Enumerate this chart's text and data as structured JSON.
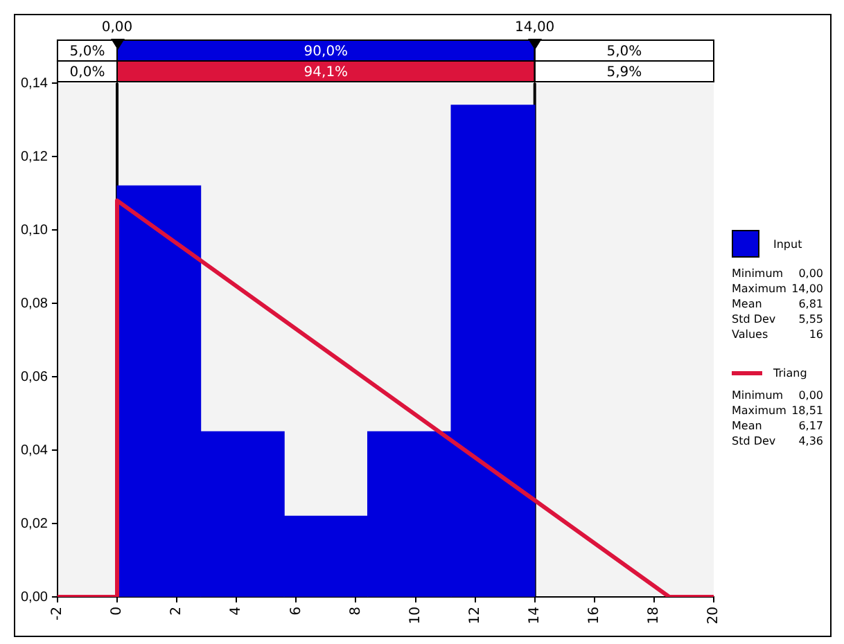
{
  "chart_data": {
    "type": "histogram",
    "bins": [
      0,
      2.8,
      5.6,
      8.4,
      11.2,
      14
    ],
    "series": [
      {
        "name": "Input",
        "type": "histogram",
        "color": "#0000dd",
        "values": [
          0.112,
          0.045,
          0.022,
          0.045,
          0.134
        ]
      },
      {
        "name": "Triang",
        "type": "line",
        "color": "#dc143c",
        "x": [
          -2,
          0,
          0,
          18.51,
          20
        ],
        "values": [
          0,
          0,
          0.108,
          0,
          0
        ]
      }
    ],
    "xlim": [
      -2,
      20
    ],
    "xticks": [
      -2,
      0,
      2,
      4,
      6,
      8,
      10,
      12,
      14,
      16,
      18,
      20
    ],
    "ylim": [
      0,
      0.14
    ],
    "yticks": [
      {
        "value": 0,
        "label": "0,00"
      },
      {
        "value": 0.02,
        "label": "0,02"
      },
      {
        "value": 0.04,
        "label": "0,04"
      },
      {
        "value": 0.06,
        "label": "0,06"
      },
      {
        "value": 0.08,
        "label": "0,08"
      },
      {
        "value": 0.1,
        "label": "0,10"
      },
      {
        "value": 0.12,
        "label": "0,12"
      },
      {
        "value": 0.14,
        "label": "0,14"
      }
    ],
    "ref_lines": [
      {
        "axis": "x",
        "value": 0,
        "label": "0,00",
        "color": "#000000"
      },
      {
        "axis": "x",
        "value": 14,
        "label": "14,00",
        "color": "#000000"
      }
    ],
    "annotations": [
      "5,0%",
      "90,0%",
      "5,0%",
      "0,0%",
      "94,1%",
      "5,9%",
      "Minimum 0,00",
      "Maximum 14,00",
      "Mean 6,81",
      "Std Dev 5,55",
      "Values 16",
      "Minimum 0,00",
      "Maximum 18,51",
      "Mean 6,17",
      "Std Dev 4,36"
    ],
    "grid": false,
    "legend": "right",
    "marker": "none",
    "line_style": "solid"
  }
}
